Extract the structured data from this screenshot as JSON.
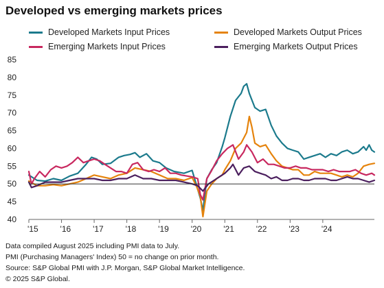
{
  "title": "Developed vs emerging markets prices",
  "notes": [
    "Data compiled August 2025 including PMI data to July.",
    "PMI (Purchasing Managers' Index) 50 = no change on prior month.",
    "Source: S&P Global PMI with J.P. Morgan, S&P Global Market Intelligence.",
    "© 2025 S&P Global."
  ],
  "chart_data": {
    "type": "line",
    "ylim": [
      40,
      85
    ],
    "yticks": [
      40,
      45,
      50,
      55,
      60,
      65,
      70,
      75,
      80,
      85
    ],
    "xlim": [
      2015.0,
      2025.58
    ],
    "xticks": [
      {
        "label": "'15",
        "value": 2015
      },
      {
        "label": "'16",
        "value": 2016
      },
      {
        "label": "'17",
        "value": 2017
      },
      {
        "label": "'18",
        "value": 2018
      },
      {
        "label": "'19",
        "value": 2019
      },
      {
        "label": "'20",
        "value": 2020
      },
      {
        "label": "'21",
        "value": 2021
      },
      {
        "label": "'22",
        "value": 2022
      },
      {
        "label": "'23",
        "value": 2023
      },
      {
        "label": "'24",
        "value": 2024
      }
    ],
    "reference_line": 50,
    "legend_position": "top",
    "series": [
      {
        "name": "Developed Markets Input Prices",
        "color": "#1b7a8c",
        "points": [
          [
            2015.0,
            52.5
          ],
          [
            2015.25,
            51.0
          ],
          [
            2015.5,
            50.8
          ],
          [
            2015.75,
            51.5
          ],
          [
            2016.0,
            51.0
          ],
          [
            2016.25,
            52.2
          ],
          [
            2016.5,
            53.0
          ],
          [
            2016.75,
            55.5
          ],
          [
            2016.92,
            57.5
          ],
          [
            2017.08,
            57.0
          ],
          [
            2017.25,
            55.5
          ],
          [
            2017.5,
            55.8
          ],
          [
            2017.75,
            57.5
          ],
          [
            2017.92,
            58.0
          ],
          [
            2018.1,
            58.3
          ],
          [
            2018.25,
            58.8
          ],
          [
            2018.4,
            57.5
          ],
          [
            2018.6,
            58.5
          ],
          [
            2018.8,
            56.5
          ],
          [
            2019.0,
            56.0
          ],
          [
            2019.2,
            54.5
          ],
          [
            2019.45,
            53.5
          ],
          [
            2019.75,
            53.0
          ],
          [
            2020.0,
            53.8
          ],
          [
            2020.25,
            46.0
          ],
          [
            2020.33,
            42.5
          ],
          [
            2020.45,
            51.5
          ],
          [
            2020.6,
            54.0
          ],
          [
            2020.75,
            56.0
          ],
          [
            2020.92,
            60.5
          ],
          [
            2021.0,
            63.0
          ],
          [
            2021.17,
            69.0
          ],
          [
            2021.33,
            73.5
          ],
          [
            2021.5,
            75.5
          ],
          [
            2021.58,
            77.5
          ],
          [
            2021.67,
            78.2
          ],
          [
            2021.75,
            75.5
          ],
          [
            2021.92,
            71.5
          ],
          [
            2022.08,
            70.5
          ],
          [
            2022.25,
            71.0
          ],
          [
            2022.42,
            66.5
          ],
          [
            2022.58,
            63.5
          ],
          [
            2022.75,
            61.5
          ],
          [
            2022.92,
            60.0
          ],
          [
            2023.08,
            59.5
          ],
          [
            2023.25,
            59.0
          ],
          [
            2023.42,
            57.0
          ],
          [
            2023.58,
            57.5
          ],
          [
            2023.75,
            58.0
          ],
          [
            2023.92,
            58.5
          ],
          [
            2024.08,
            57.5
          ],
          [
            2024.25,
            58.5
          ],
          [
            2024.42,
            58.0
          ],
          [
            2024.58,
            59.0
          ],
          [
            2024.75,
            59.5
          ],
          [
            2024.92,
            58.5
          ],
          [
            2025.08,
            59.0
          ],
          [
            2025.25,
            60.5
          ],
          [
            2025.33,
            59.5
          ],
          [
            2025.42,
            61.0
          ],
          [
            2025.5,
            59.5
          ],
          [
            2025.58,
            59.0
          ]
        ]
      },
      {
        "name": "Developed Markets Output Prices",
        "color": "#e5830c",
        "points": [
          [
            2015.0,
            50.8
          ],
          [
            2015.25,
            49.5
          ],
          [
            2015.5,
            49.5
          ],
          [
            2015.75,
            49.8
          ],
          [
            2016.0,
            49.5
          ],
          [
            2016.25,
            50.0
          ],
          [
            2016.5,
            50.5
          ],
          [
            2016.75,
            51.5
          ],
          [
            2017.0,
            52.5
          ],
          [
            2017.25,
            52.0
          ],
          [
            2017.5,
            51.5
          ],
          [
            2017.75,
            52.5
          ],
          [
            2018.0,
            53.0
          ],
          [
            2018.25,
            54.5
          ],
          [
            2018.5,
            54.0
          ],
          [
            2018.75,
            53.5
          ],
          [
            2019.0,
            52.5
          ],
          [
            2019.25,
            51.5
          ],
          [
            2019.5,
            51.5
          ],
          [
            2019.75,
            51.0
          ],
          [
            2020.0,
            51.8
          ],
          [
            2020.15,
            49.0
          ],
          [
            2020.25,
            46.5
          ],
          [
            2020.33,
            40.8
          ],
          [
            2020.45,
            48.0
          ],
          [
            2020.6,
            50.0
          ],
          [
            2020.75,
            51.5
          ],
          [
            2020.92,
            52.5
          ],
          [
            2021.0,
            54.0
          ],
          [
            2021.17,
            56.5
          ],
          [
            2021.33,
            60.0
          ],
          [
            2021.5,
            61.5
          ],
          [
            2021.67,
            64.5
          ],
          [
            2021.75,
            69.0
          ],
          [
            2021.83,
            66.0
          ],
          [
            2021.92,
            61.5
          ],
          [
            2022.08,
            60.5
          ],
          [
            2022.25,
            61.0
          ],
          [
            2022.42,
            58.5
          ],
          [
            2022.58,
            56.5
          ],
          [
            2022.75,
            55.0
          ],
          [
            2022.92,
            54.5
          ],
          [
            2023.08,
            54.0
          ],
          [
            2023.25,
            54.0
          ],
          [
            2023.42,
            52.5
          ],
          [
            2023.58,
            52.5
          ],
          [
            2023.75,
            53.5
          ],
          [
            2023.92,
            53.0
          ],
          [
            2024.08,
            53.0
          ],
          [
            2024.25,
            53.0
          ],
          [
            2024.42,
            52.5
          ],
          [
            2024.58,
            52.0
          ],
          [
            2024.75,
            52.5
          ],
          [
            2024.92,
            52.0
          ],
          [
            2025.08,
            53.0
          ],
          [
            2025.25,
            55.0
          ],
          [
            2025.42,
            55.5
          ],
          [
            2025.58,
            55.8
          ]
        ]
      },
      {
        "name": "Emerging Markets Input Prices",
        "color": "#c8285f",
        "points": [
          [
            2015.0,
            53.5
          ],
          [
            2015.08,
            50.0
          ],
          [
            2015.17,
            51.5
          ],
          [
            2015.33,
            53.5
          ],
          [
            2015.5,
            52.0
          ],
          [
            2015.67,
            54.0
          ],
          [
            2015.83,
            55.0
          ],
          [
            2016.0,
            54.5
          ],
          [
            2016.17,
            55.0
          ],
          [
            2016.33,
            56.0
          ],
          [
            2016.5,
            57.5
          ],
          [
            2016.67,
            56.0
          ],
          [
            2016.83,
            56.5
          ],
          [
            2017.0,
            57.0
          ],
          [
            2017.17,
            56.5
          ],
          [
            2017.33,
            55.5
          ],
          [
            2017.5,
            54.5
          ],
          [
            2017.67,
            53.5
          ],
          [
            2017.83,
            53.5
          ],
          [
            2018.0,
            53.0
          ],
          [
            2018.17,
            55.5
          ],
          [
            2018.33,
            56.0
          ],
          [
            2018.5,
            54.0
          ],
          [
            2018.67,
            53.5
          ],
          [
            2018.83,
            54.0
          ],
          [
            2019.0,
            53.5
          ],
          [
            2019.17,
            54.5
          ],
          [
            2019.33,
            53.0
          ],
          [
            2019.5,
            53.0
          ],
          [
            2019.67,
            52.5
          ],
          [
            2020.0,
            52.0
          ],
          [
            2020.17,
            51.5
          ],
          [
            2020.25,
            47.0
          ],
          [
            2020.33,
            45.5
          ],
          [
            2020.45,
            51.5
          ],
          [
            2020.58,
            53.5
          ],
          [
            2020.75,
            56.5
          ],
          [
            2020.92,
            58.5
          ],
          [
            2021.08,
            60.0
          ],
          [
            2021.25,
            61.0
          ],
          [
            2021.42,
            57.0
          ],
          [
            2021.58,
            59.0
          ],
          [
            2021.67,
            61.0
          ],
          [
            2021.83,
            59.0
          ],
          [
            2022.0,
            56.0
          ],
          [
            2022.17,
            57.0
          ],
          [
            2022.33,
            55.5
          ],
          [
            2022.5,
            55.5
          ],
          [
            2022.67,
            55.0
          ],
          [
            2022.83,
            54.5
          ],
          [
            2023.0,
            54.5
          ],
          [
            2023.17,
            55.0
          ],
          [
            2023.33,
            54.5
          ],
          [
            2023.5,
            54.5
          ],
          [
            2023.67,
            54.0
          ],
          [
            2023.83,
            54.0
          ],
          [
            2024.0,
            54.0
          ],
          [
            2024.17,
            53.5
          ],
          [
            2024.33,
            54.0
          ],
          [
            2024.5,
            53.5
          ],
          [
            2024.67,
            53.5
          ],
          [
            2024.83,
            53.5
          ],
          [
            2025.0,
            54.0
          ],
          [
            2025.17,
            53.0
          ],
          [
            2025.33,
            52.5
          ],
          [
            2025.5,
            53.0
          ],
          [
            2025.58,
            52.5
          ]
        ]
      },
      {
        "name": "Emerging Markets Output Prices",
        "color": "#4b1f5e",
        "points": [
          [
            2015.0,
            50.5
          ],
          [
            2015.08,
            49.0
          ],
          [
            2015.25,
            49.5
          ],
          [
            2015.5,
            50.5
          ],
          [
            2015.75,
            50.5
          ],
          [
            2016.0,
            50.5
          ],
          [
            2016.25,
            51.0
          ],
          [
            2016.5,
            51.5
          ],
          [
            2016.75,
            51.5
          ],
          [
            2017.0,
            51.5
          ],
          [
            2017.25,
            51.0
          ],
          [
            2017.5,
            51.0
          ],
          [
            2017.75,
            51.5
          ],
          [
            2018.0,
            51.5
          ],
          [
            2018.25,
            52.5
          ],
          [
            2018.5,
            51.5
          ],
          [
            2018.75,
            51.5
          ],
          [
            2019.0,
            51.0
          ],
          [
            2019.25,
            51.0
          ],
          [
            2019.5,
            51.0
          ],
          [
            2019.75,
            50.5
          ],
          [
            2020.0,
            50.0
          ],
          [
            2020.17,
            49.5
          ],
          [
            2020.33,
            48.0
          ],
          [
            2020.5,
            50.0
          ],
          [
            2020.67,
            51.0
          ],
          [
            2020.83,
            52.0
          ],
          [
            2021.0,
            53.0
          ],
          [
            2021.17,
            54.5
          ],
          [
            2021.25,
            55.5
          ],
          [
            2021.42,
            52.5
          ],
          [
            2021.58,
            54.5
          ],
          [
            2021.75,
            55.0
          ],
          [
            2021.92,
            53.5
          ],
          [
            2022.08,
            53.0
          ],
          [
            2022.25,
            52.5
          ],
          [
            2022.42,
            51.5
          ],
          [
            2022.58,
            52.0
          ],
          [
            2022.75,
            51.0
          ],
          [
            2022.92,
            51.0
          ],
          [
            2023.08,
            51.5
          ],
          [
            2023.25,
            51.5
          ],
          [
            2023.42,
            51.0
          ],
          [
            2023.58,
            51.0
          ],
          [
            2023.75,
            51.5
          ],
          [
            2023.92,
            51.5
          ],
          [
            2024.08,
            51.5
          ],
          [
            2024.25,
            51.0
          ],
          [
            2024.42,
            51.0
          ],
          [
            2024.58,
            51.5
          ],
          [
            2024.75,
            52.0
          ],
          [
            2024.92,
            51.5
          ],
          [
            2025.08,
            51.5
          ],
          [
            2025.25,
            51.0
          ],
          [
            2025.42,
            50.5
          ],
          [
            2025.58,
            51.0
          ]
        ]
      }
    ]
  }
}
